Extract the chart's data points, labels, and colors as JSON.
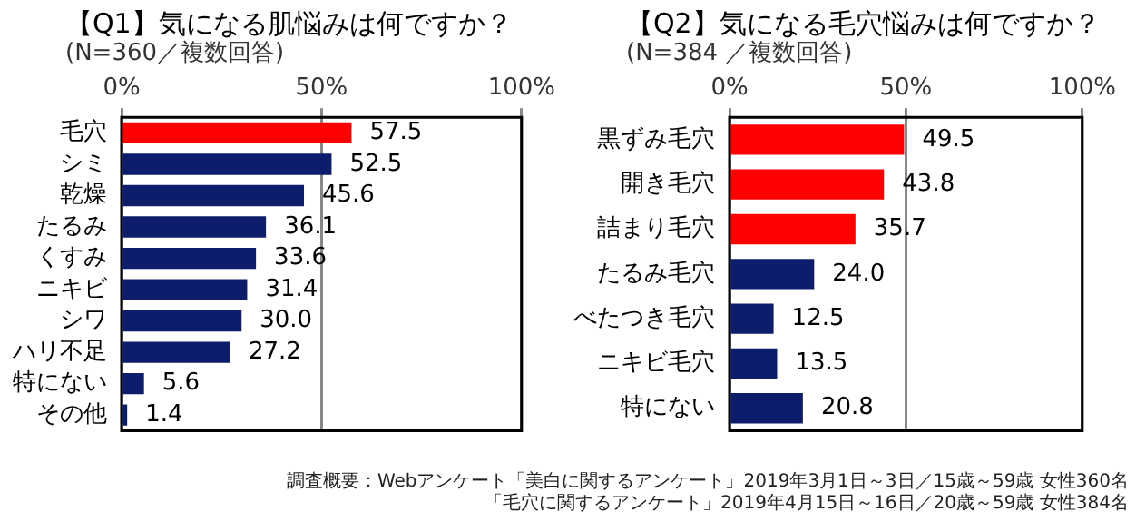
{
  "chart_data": [
    {
      "type": "bar",
      "orientation": "horizontal",
      "title": "【Q1】気になる肌悩みは何ですか？",
      "subtitle": "(N=360／複数回答)",
      "categories": [
        "毛穴",
        "シミ",
        "乾燥",
        "たるみ",
        "くすみ",
        "ニキビ",
        "シワ",
        "ハリ不足",
        "特にない",
        "その他"
      ],
      "values": [
        57.5,
        52.5,
        45.6,
        36.1,
        33.6,
        31.4,
        30.0,
        27.2,
        5.6,
        1.4
      ],
      "value_labels": [
        "57.5",
        "52.5",
        "45.6",
        "36.1",
        "33.6",
        "31.4",
        "30.0",
        "27.2",
        "5.6",
        "1.4"
      ],
      "colors": [
        "#ff0000",
        "#0d1c6b",
        "#0d1c6b",
        "#0d1c6b",
        "#0d1c6b",
        "#0d1c6b",
        "#0d1c6b",
        "#0d1c6b",
        "#0d1c6b",
        "#0d1c6b"
      ],
      "xlim": [
        0,
        100
      ],
      "xticks": [
        {
          "value": 0,
          "label": "0%"
        },
        {
          "value": 50,
          "label": "50%"
        },
        {
          "value": 100,
          "label": "100%"
        }
      ],
      "grid": "x",
      "legend": false
    },
    {
      "type": "bar",
      "orientation": "horizontal",
      "title": "【Q2】気になる毛穴悩みは何ですか？",
      "subtitle": "(N=384 ／複数回答)",
      "categories": [
        "黒ずみ毛穴",
        "開き毛穴",
        "詰まり毛穴",
        "たるみ毛穴",
        "べたつき毛穴",
        "ニキビ毛穴",
        "特にない"
      ],
      "values": [
        49.5,
        43.8,
        35.7,
        24.0,
        12.5,
        13.5,
        20.8
      ],
      "value_labels": [
        "49.5",
        "43.8",
        "35.7",
        "24.0",
        "12.5",
        "13.5",
        "20.8"
      ],
      "colors": [
        "#ff0000",
        "#ff0000",
        "#ff0000",
        "#0d1c6b",
        "#0d1c6b",
        "#0d1c6b",
        "#0d1c6b"
      ],
      "xlim": [
        0,
        100
      ],
      "xticks": [
        {
          "value": 0,
          "label": "0%"
        },
        {
          "value": 50,
          "label": "50%"
        },
        {
          "value": 100,
          "label": "100%"
        }
      ],
      "grid": "x",
      "legend": false,
      "annotations": [
        "調査概要：Webアンケート「美白に関するアンケート」2019年3月1日～3日／15歳～59歳 女性360名",
        "「毛穴に関するアンケート」2019年4月15日～16日／20歳～59歳 女性384名"
      ]
    }
  ]
}
